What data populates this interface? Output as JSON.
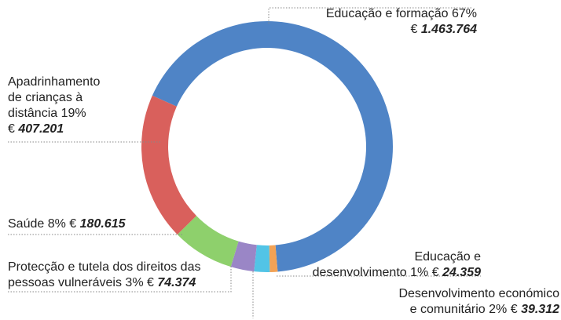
{
  "chart_data": {
    "type": "pie",
    "categories": [
      "Educação e formação",
      "Educação e\ndesenvolvimento",
      "Desenvolvimento económico\ne comunitário",
      "Protecção e tutela dos direitos das\npessoas vulneráveis",
      "Saúde",
      "Apadrinhamento\nde crianças à\ndistância"
    ],
    "values": [
      67,
      1,
      2,
      3,
      8,
      19
    ],
    "value_labels": [
      "67%",
      "1%",
      "2%",
      "3%",
      "8%",
      "19%"
    ],
    "currency": "€",
    "amounts": [
      1463764,
      24359,
      39312,
      74374,
      180615,
      407201
    ],
    "amount_labels": [
      "1.463.764",
      "24.359",
      "39.312",
      "74.374",
      "180.615",
      "407.201"
    ],
    "colors": [
      "#4f84c6",
      "#f2a255",
      "#52c4e6",
      "#9a86c6",
      "#8ed06c",
      "#d9605c"
    ]
  }
}
